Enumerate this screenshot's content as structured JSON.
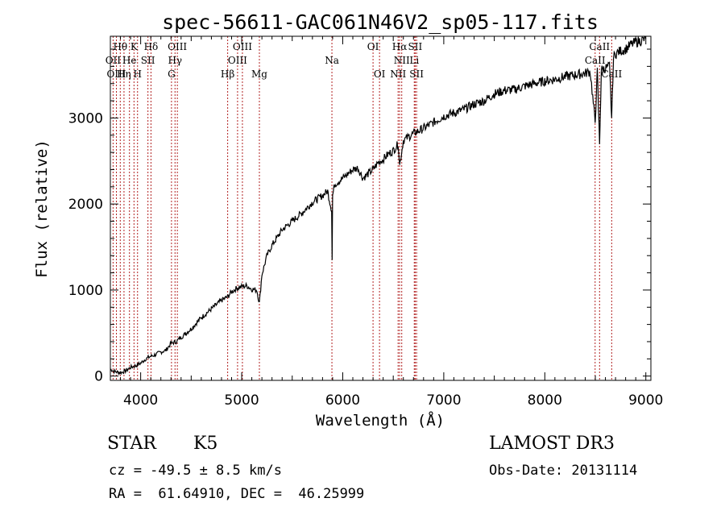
{
  "chart_data": {
    "type": "line",
    "title": "spec-56611-GAC061N46V2_sp05-117.fits",
    "xlabel": "Wavelength (Å)",
    "ylabel": "Flux (relative)",
    "xlim": [
      3700,
      9050
    ],
    "ylim": [
      -50,
      3950
    ],
    "xticks": [
      4000,
      5000,
      6000,
      7000,
      8000,
      9000
    ],
    "yticks": [
      0,
      1000,
      2000,
      3000
    ],
    "grid": false,
    "series": [
      {
        "name": "spectrum",
        "x": [
          3700,
          3750,
          3800,
          3850,
          3900,
          3950,
          4000,
          4050,
          4100,
          4150,
          4200,
          4250,
          4300,
          4350,
          4400,
          4500,
          4600,
          4700,
          4800,
          4860,
          4900,
          4950,
          5000,
          5050,
          5100,
          5150,
          5175,
          5200,
          5250,
          5300,
          5400,
          5500,
          5600,
          5700,
          5800,
          5850,
          5890,
          5895,
          5900,
          5920,
          6000,
          6050,
          6100,
          6150,
          6200,
          6250,
          6300,
          6350,
          6400,
          6450,
          6500,
          6550,
          6563,
          6600,
          6650,
          6700,
          6800,
          6900,
          7000,
          7100,
          7200,
          7300,
          7400,
          7500,
          7600,
          7700,
          7800,
          7900,
          8000,
          8100,
          8200,
          8300,
          8400,
          8450,
          8498,
          8520,
          8542,
          8560,
          8600,
          8640,
          8662,
          8680,
          8700,
          8750,
          8800,
          8850,
          8900,
          8950,
          9000
        ],
        "y": [
          80,
          50,
          40,
          60,
          100,
          120,
          150,
          200,
          230,
          250,
          280,
          300,
          380,
          400,
          450,
          550,
          680,
          780,
          880,
          920,
          980,
          1020,
          1040,
          1050,
          1010,
          1000,
          850,
          1180,
          1400,
          1520,
          1700,
          1800,
          1900,
          2020,
          2100,
          2150,
          1930,
          1350,
          2100,
          2230,
          2300,
          2350,
          2400,
          2420,
          2300,
          2350,
          2400,
          2480,
          2520,
          2580,
          2620,
          2700,
          2450,
          2740,
          2780,
          2820,
          2880,
          2950,
          3020,
          3060,
          3100,
          3160,
          3200,
          3280,
          3320,
          3330,
          3370,
          3400,
          3430,
          3450,
          3480,
          3500,
          3520,
          3540,
          2950,
          3540,
          2700,
          3560,
          3580,
          3600,
          3000,
          3700,
          3750,
          3780,
          3800,
          3850,
          3880,
          3900,
          3920
        ]
      }
    ],
    "line_markers": [
      {
        "label": "Hθ",
        "wavelength": 3798,
        "row": 0
      },
      {
        "label": "OII",
        "wavelength": 3727,
        "row": 1
      },
      {
        "label": "OIII",
        "wavelength": 3760,
        "row": 2
      },
      {
        "label": "He",
        "wavelength": 3889,
        "row": 1
      },
      {
        "label": "Hη",
        "wavelength": 3835,
        "row": 2
      },
      {
        "label": "K",
        "wavelength": 3934,
        "row": 0
      },
      {
        "label": "H",
        "wavelength": 3969,
        "row": 2
      },
      {
        "label": "SII",
        "wavelength": 4072,
        "row": 1
      },
      {
        "label": "Hδ",
        "wavelength": 4102,
        "row": 0
      },
      {
        "label": "OIII",
        "wavelength": 4363,
        "row": 0
      },
      {
        "label": "Hγ",
        "wavelength": 4340,
        "row": 1
      },
      {
        "label": "G",
        "wavelength": 4305,
        "row": 2
      },
      {
        "label": "Hβ",
        "wavelength": 4861,
        "row": 2
      },
      {
        "label": "OIII",
        "wavelength": 4959,
        "row": 1
      },
      {
        "label": "OIII",
        "wavelength": 5007,
        "row": 0
      },
      {
        "label": "Mg",
        "wavelength": 5175,
        "row": 2
      },
      {
        "label": "Na",
        "wavelength": 5893,
        "row": 1
      },
      {
        "label": "OI",
        "wavelength": 6300,
        "row": 0
      },
      {
        "label": "OI",
        "wavelength": 6364,
        "row": 2
      },
      {
        "label": "Hα",
        "wavelength": 6563,
        "row": 0
      },
      {
        "label": "NII",
        "wavelength": 6548,
        "row": 2
      },
      {
        "label": "NII",
        "wavelength": 6584,
        "row": 1
      },
      {
        "label": "SII",
        "wavelength": 6717,
        "row": 0
      },
      {
        "label": "Li",
        "wavelength": 6708,
        "row": 1
      },
      {
        "label": "SII",
        "wavelength": 6731,
        "row": 2
      },
      {
        "label": "CaII",
        "wavelength": 8542,
        "row": 0
      },
      {
        "label": "CaII",
        "wavelength": 8498,
        "row": 1
      },
      {
        "label": "CaII",
        "wavelength": 8662,
        "row": 2
      }
    ]
  },
  "info": {
    "object_class": "STAR",
    "subclass": "K5",
    "survey": "LAMOST DR3",
    "cz_line": "cz = -49.5 ± 8.5 km/s",
    "obs_date_line": "Obs-Date: 20131114",
    "coords_line": "RA =  61.64910, DEC =  46.25999"
  }
}
